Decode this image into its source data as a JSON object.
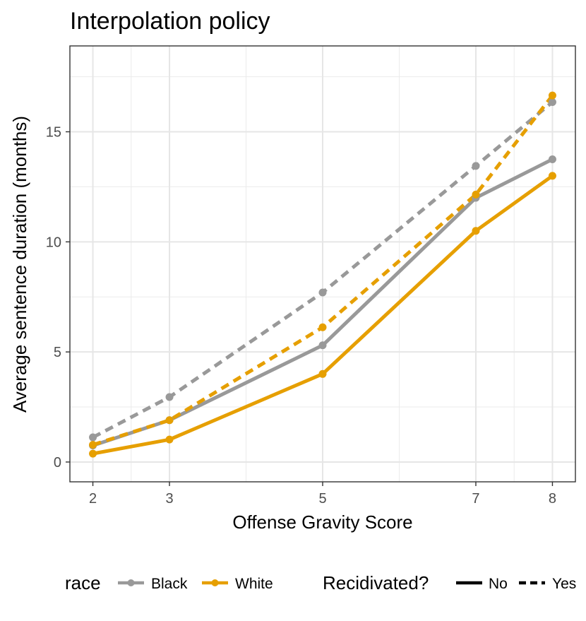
{
  "chart_data": {
    "type": "line",
    "title": "Interpolation policy",
    "xlabel": "Offense Gravity Score",
    "ylabel": "Average sentence duration (months)",
    "x": [
      2,
      3,
      5,
      7,
      8
    ],
    "xticks": [
      2,
      3,
      5,
      7,
      8
    ],
    "yticks": [
      0,
      5,
      10,
      15
    ],
    "xlim": [
      1.7,
      8.3
    ],
    "ylim": [
      -0.9,
      18.9
    ],
    "grid": true,
    "series": [
      {
        "name": "Black, No",
        "race": "Black",
        "recidivated": "No",
        "values": [
          0.75,
          1.9,
          5.3,
          12.0,
          13.75
        ]
      },
      {
        "name": "White, No",
        "race": "White",
        "recidivated": "No",
        "values": [
          0.38,
          1.02,
          4.0,
          10.5,
          13.0
        ]
      },
      {
        "name": "Black, Yes",
        "race": "Black",
        "recidivated": "Yes",
        "values": [
          1.12,
          2.95,
          7.7,
          13.45,
          16.35
        ]
      },
      {
        "name": "White, Yes",
        "race": "White",
        "recidivated": "Yes",
        "values": [
          0.78,
          1.9,
          6.12,
          12.15,
          16.65
        ]
      }
    ],
    "colors": {
      "Black": "#999999",
      "White": "#e69f00"
    },
    "legend": {
      "placement": "bottom",
      "race_title": "race",
      "race_entries": [
        "Black",
        "White"
      ],
      "linetype_title": "Recidivated?",
      "linetype_entries": [
        "No",
        "Yes"
      ]
    }
  }
}
